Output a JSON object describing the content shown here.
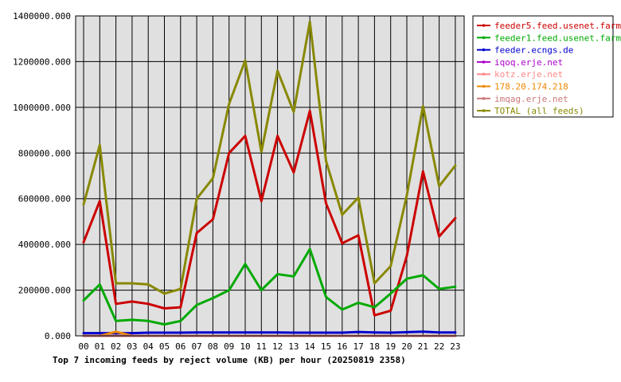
{
  "chart_data": {
    "type": "line",
    "title": "Top 7 incoming feeds by reject volume (KB) per hour (20250819 2358)",
    "xlabel": "",
    "ylabel": "",
    "categories": [
      "00",
      "01",
      "02",
      "03",
      "04",
      "05",
      "06",
      "07",
      "08",
      "09",
      "10",
      "11",
      "12",
      "13",
      "14",
      "15",
      "16",
      "17",
      "18",
      "19",
      "20",
      "21",
      "22",
      "23"
    ],
    "y_ticks": [
      "0.000",
      "200000.000",
      "400000.000",
      "600000.000",
      "800000.000",
      "1000000.000",
      "1200000.000",
      "1400000.000"
    ],
    "ylim": [
      0,
      1400000
    ],
    "grid": true,
    "legend_position": "top-right",
    "series": [
      {
        "name": "feeder5.feed.usenet.farm",
        "color": "#cc0000",
        "values": [
          410000,
          590000,
          140000,
          150000,
          140000,
          120000,
          125000,
          450000,
          510000,
          800000,
          875000,
          590000,
          875000,
          715000,
          985000,
          580000,
          405000,
          440000,
          90000,
          110000,
          350000,
          720000,
          435000,
          515000
        ]
      },
      {
        "name": "feeder1.feed.usenet.farm",
        "color": "#00aa00",
        "values": [
          155000,
          225000,
          65000,
          70000,
          65000,
          50000,
          65000,
          135000,
          165000,
          200000,
          315000,
          200000,
          270000,
          260000,
          380000,
          170000,
          115000,
          145000,
          125000,
          185000,
          250000,
          265000,
          205000,
          215000
        ]
      },
      {
        "name": "feeder.ecngs.de",
        "color": "#0000cc",
        "values": [
          12000,
          12000,
          12000,
          12000,
          14000,
          14000,
          14000,
          15000,
          15000,
          15000,
          15000,
          15000,
          15000,
          14000,
          14000,
          14000,
          14000,
          17000,
          15000,
          14000,
          16000,
          18000,
          15000,
          15000
        ]
      },
      {
        "name": "iqoq.erje.net",
        "color": "#aa00cc",
        "values": [
          0,
          0,
          0,
          0,
          0,
          0,
          0,
          0,
          0,
          0,
          0,
          0,
          0,
          0,
          0,
          0,
          0,
          0,
          0,
          0,
          0,
          0,
          0,
          0
        ]
      },
      {
        "name": "kotz.erje.net",
        "color": "#ff8888",
        "values": [
          0,
          0,
          0,
          0,
          0,
          0,
          0,
          0,
          0,
          0,
          0,
          0,
          0,
          0,
          0,
          0,
          0,
          0,
          0,
          0,
          0,
          0,
          0,
          0
        ]
      },
      {
        "name": "178.20.174.218",
        "color": "#ee8800",
        "values": [
          0,
          0,
          18000,
          0,
          0,
          0,
          0,
          0,
          0,
          0,
          0,
          0,
          0,
          0,
          0,
          0,
          0,
          0,
          0,
          0,
          0,
          0,
          0,
          0
        ]
      },
      {
        "name": "imqag.erje.net",
        "color": "#cc7777",
        "values": [
          0,
          0,
          0,
          0,
          0,
          0,
          0,
          0,
          0,
          0,
          0,
          0,
          0,
          0,
          0,
          0,
          0,
          0,
          0,
          0,
          0,
          0,
          0,
          0
        ]
      },
      {
        "name": "TOTAL (all feeds)",
        "color": "#888800",
        "values": [
          575000,
          835000,
          230000,
          230000,
          225000,
          185000,
          205000,
          600000,
          690000,
          1015000,
          1205000,
          805000,
          1160000,
          980000,
          1375000,
          765000,
          530000,
          605000,
          230000,
          305000,
          615000,
          1005000,
          655000,
          745000
        ]
      }
    ]
  }
}
